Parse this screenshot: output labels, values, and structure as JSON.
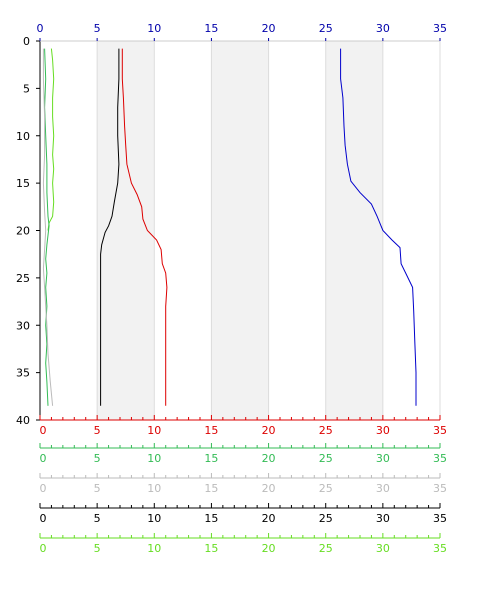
{
  "chart_data": {
    "type": "line",
    "orientation": "vertical-profile",
    "y_axis": {
      "ticks": [
        "0",
        "5",
        "10",
        "15",
        "20",
        "25",
        "30",
        "35",
        "40"
      ],
      "range": [
        0,
        40
      ],
      "inverted": true,
      "color": "#000000"
    },
    "top_axis": {
      "ticks": [
        "0",
        "5",
        "10",
        "15",
        "20",
        "25",
        "30",
        "35"
      ],
      "range": [
        0,
        35
      ],
      "color": "#0000aa"
    },
    "bottom_axes": [
      {
        "ticks": [
          "0",
          "5",
          "10",
          "15",
          "20",
          "25",
          "30",
          "35"
        ],
        "range": [
          0,
          35
        ],
        "color": "#dd0000"
      },
      {
        "ticks": [
          "0",
          "5",
          "10",
          "15",
          "20",
          "25",
          "30",
          "35"
        ],
        "range": [
          0,
          35
        ],
        "color": "#33bb55"
      },
      {
        "ticks": [
          "0",
          "5",
          "10",
          "15",
          "20",
          "25",
          "30",
          "35"
        ],
        "range": [
          0,
          35
        ],
        "color": "#bbbbbb"
      },
      {
        "ticks": [
          "0",
          "5",
          "10",
          "15",
          "20",
          "25",
          "30",
          "35"
        ],
        "range": [
          0,
          35
        ],
        "color": "#000000"
      },
      {
        "ticks": [
          "0",
          "5",
          "10",
          "15",
          "20",
          "25",
          "30",
          "35"
        ],
        "range": [
          0,
          35
        ],
        "color": "#66dd22"
      }
    ],
    "shaded_bands": [
      [
        5,
        10
      ],
      [
        15,
        20
      ],
      [
        25,
        30
      ]
    ],
    "series": [
      {
        "color": "#0000cc",
        "points": [
          [
            26.3,
            0.8
          ],
          [
            26.3,
            4
          ],
          [
            26.5,
            6
          ],
          [
            26.6,
            9
          ],
          [
            26.7,
            11
          ],
          [
            26.9,
            13
          ],
          [
            27.2,
            14.8
          ],
          [
            28,
            16
          ],
          [
            29,
            17.2
          ],
          [
            29.5,
            18.5
          ],
          [
            30,
            20
          ],
          [
            30.8,
            21
          ],
          [
            31.5,
            21.8
          ],
          [
            31.6,
            23.5
          ],
          [
            32,
            24.5
          ],
          [
            32.6,
            26
          ],
          [
            32.7,
            28.5
          ],
          [
            32.8,
            32
          ],
          [
            32.9,
            35
          ],
          [
            32.9,
            38.5
          ]
        ]
      },
      {
        "color": "#dd0000",
        "points": [
          [
            7.2,
            0.8
          ],
          [
            7.2,
            4
          ],
          [
            7.3,
            6
          ],
          [
            7.4,
            9
          ],
          [
            7.5,
            11
          ],
          [
            7.6,
            13
          ],
          [
            8.0,
            15
          ],
          [
            8.5,
            16.2
          ],
          [
            8.9,
            17.5
          ],
          [
            9.0,
            18.8
          ],
          [
            9.4,
            20
          ],
          [
            10.2,
            21
          ],
          [
            10.6,
            22
          ],
          [
            10.7,
            23.5
          ],
          [
            11.0,
            24.5
          ],
          [
            11.1,
            26
          ],
          [
            11.0,
            28
          ],
          [
            11.0,
            32
          ],
          [
            11.0,
            35
          ],
          [
            11.0,
            38.5
          ]
        ]
      },
      {
        "color": "#000000",
        "points": [
          [
            6.9,
            0.8
          ],
          [
            6.9,
            4
          ],
          [
            6.8,
            7
          ],
          [
            6.8,
            10
          ],
          [
            6.9,
            13
          ],
          [
            6.8,
            15
          ],
          [
            6.5,
            17
          ],
          [
            6.3,
            18.5
          ],
          [
            6.0,
            19.5
          ],
          [
            5.7,
            20.2
          ],
          [
            5.4,
            21.5
          ],
          [
            5.3,
            22.5
          ],
          [
            5.3,
            24
          ],
          [
            5.3,
            28
          ],
          [
            5.3,
            32
          ],
          [
            5.3,
            35
          ],
          [
            5.3,
            38.5
          ]
        ]
      },
      {
        "color": "#66dd22",
        "points": [
          [
            1.0,
            0.8
          ],
          [
            1.1,
            2
          ],
          [
            1.2,
            4
          ],
          [
            1.1,
            6
          ],
          [
            1.1,
            8
          ],
          [
            1.2,
            10
          ],
          [
            1.1,
            12
          ],
          [
            1.2,
            13.5
          ],
          [
            1.1,
            15
          ],
          [
            1.2,
            17
          ],
          [
            1.1,
            18.5
          ],
          [
            0.8,
            19.2
          ],
          [
            0.7,
            20
          ]
        ]
      },
      {
        "color": "#33bb55",
        "points": [
          [
            0.4,
            0.8
          ],
          [
            0.5,
            4
          ],
          [
            0.4,
            7
          ],
          [
            0.5,
            10
          ],
          [
            0.6,
            13
          ],
          [
            0.6,
            16
          ],
          [
            0.7,
            18.5
          ],
          [
            0.8,
            19.5
          ],
          [
            0.7,
            20.5
          ],
          [
            0.6,
            21.5
          ],
          [
            0.5,
            23
          ],
          [
            0.6,
            24.5
          ],
          [
            0.5,
            26
          ],
          [
            0.6,
            28
          ],
          [
            0.5,
            30
          ],
          [
            0.6,
            32
          ],
          [
            0.5,
            34
          ],
          [
            0.6,
            36
          ],
          [
            0.7,
            38.5
          ]
        ]
      },
      {
        "color": "#bbbbbb",
        "points": [
          [
            0.3,
            0.8
          ],
          [
            0.3,
            4
          ],
          [
            0.4,
            8
          ],
          [
            0.4,
            12
          ],
          [
            0.3,
            15
          ],
          [
            0.4,
            18
          ],
          [
            0.5,
            20
          ],
          [
            0.4,
            22
          ],
          [
            0.3,
            24
          ],
          [
            0.4,
            26
          ],
          [
            0.5,
            28
          ],
          [
            0.6,
            30
          ],
          [
            0.7,
            33
          ],
          [
            0.9,
            36
          ],
          [
            1.1,
            38.5
          ]
        ]
      }
    ]
  }
}
